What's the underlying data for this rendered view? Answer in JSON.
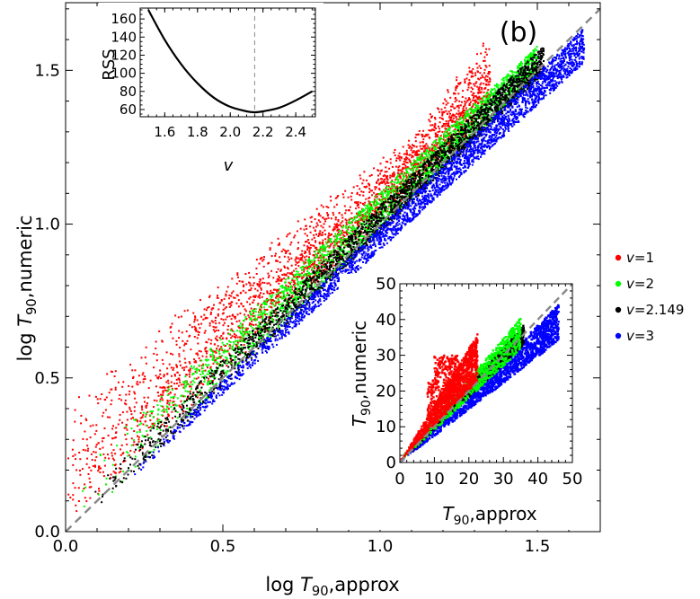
{
  "figure": {
    "panel_label": "(b)",
    "legend": [
      {
        "label": "v=1",
        "var": "v",
        "value": "=1",
        "color": "#ff0000"
      },
      {
        "label": "v=2",
        "var": "v",
        "value": "=2",
        "color": "#00ff00"
      },
      {
        "label": "v=2.149",
        "var": "v",
        "value": "=2.149",
        "color": "#000000"
      },
      {
        "label": "v=3",
        "var": "v",
        "value": "=3",
        "color": "#0000ff"
      }
    ]
  },
  "chart_data": [
    {
      "type": "scatter",
      "xlabel": "log T90,approx",
      "xlabel_parts": {
        "prefix": "log ",
        "var": "T",
        "sub": "90",
        "suffix": ",approx"
      },
      "ylabel": "log T90,numeric",
      "ylabel_parts": {
        "prefix": "log ",
        "var": "T",
        "sub": "90",
        "suffix": ",numeric"
      },
      "xlim": [
        0,
        1.7
      ],
      "ylim": [
        0,
        1.72
      ],
      "xticks": [
        "0.0",
        "0.5",
        "1.0",
        "1.5"
      ],
      "xtick_values": [
        0,
        0.5,
        1.0,
        1.5
      ],
      "yticks": [
        "0.0",
        "0.5",
        "1.0",
        "1.5"
      ],
      "ytick_values": [
        0,
        0.5,
        1.0,
        1.5
      ],
      "reference_line": {
        "style": "dashed",
        "color": "#888888",
        "slope": 1,
        "intercept": 0
      },
      "series": [
        {
          "name": "v=1",
          "color": "#ff0000",
          "x_range": [
            0,
            1.35
          ],
          "upper_y_at_xmax": 1.55,
          "y_floor_ratio": 1.0
        },
        {
          "name": "v=2",
          "color": "#00ff00",
          "x_range": [
            0.05,
            1.5
          ],
          "upper_y_at_xmax": 1.57,
          "y_floor_ratio": 1.0
        },
        {
          "name": "v=2.149",
          "color": "#000000",
          "x_range": [
            0.08,
            1.52
          ],
          "upper_y_at_xmax": 1.56,
          "y_floor_ratio": 1.0
        },
        {
          "name": "v=3",
          "color": "#0000ff",
          "x_range": [
            0.2,
            1.65
          ],
          "upper_y_at_xmax": 1.55,
          "y_floor_ratio": 0.92
        }
      ]
    },
    {
      "type": "line",
      "xlabel": "v",
      "ylabel": "RSS",
      "xlim": [
        1.45,
        2.52
      ],
      "ylim": [
        52,
        172
      ],
      "xticks": [
        "1.6",
        "1.8",
        "2.0",
        "2.2",
        "2.4"
      ],
      "xtick_values": [
        1.6,
        1.8,
        2.0,
        2.2,
        2.4
      ],
      "yticks": [
        "60",
        "80",
        "100",
        "120",
        "140",
        "160"
      ],
      "ytick_values": [
        60,
        80,
        100,
        120,
        140,
        160
      ],
      "x": [
        1.5,
        1.6,
        1.7,
        1.8,
        1.9,
        2.0,
        2.1,
        2.149,
        2.2,
        2.3,
        2.4,
        2.5
      ],
      "y": [
        170,
        137,
        110,
        89,
        73,
        63,
        58,
        57,
        58,
        62,
        70,
        80
      ],
      "vline": 2.149
    },
    {
      "type": "scatter",
      "xlabel": "T90,approx",
      "xlabel_parts": {
        "prefix": "",
        "var": "T",
        "sub": "90",
        "suffix": ",approx"
      },
      "ylabel": "T90,numeric",
      "ylabel_parts": {
        "prefix": "",
        "var": "T",
        "sub": "90",
        "suffix": ",numeric"
      },
      "xlim": [
        0,
        50
      ],
      "ylim": [
        0,
        50
      ],
      "xticks": [
        "0",
        "10",
        "20",
        "30",
        "40",
        "50"
      ],
      "xtick_values": [
        0,
        10,
        20,
        30,
        40,
        50
      ],
      "yticks": [
        "0",
        "10",
        "20",
        "30",
        "40",
        "50"
      ],
      "ytick_values": [
        0,
        10,
        20,
        30,
        40,
        50
      ],
      "reference_line": {
        "style": "dashed",
        "color": "#888888",
        "slope": 1,
        "intercept": 0
      },
      "series": [
        {
          "name": "v=1",
          "color": "#ff0000",
          "x_max": 22.5,
          "y_at_xmax": 35
        },
        {
          "name": "v=2",
          "color": "#00ff00",
          "x_max": 35,
          "y_at_xmax": 36
        },
        {
          "name": "v=2.149",
          "color": "#000000",
          "x_max": 36,
          "y_at_xmax": 36
        },
        {
          "name": "v=3",
          "color": "#0000ff",
          "x_max": 46,
          "y_at_xmax": 36
        }
      ]
    }
  ]
}
